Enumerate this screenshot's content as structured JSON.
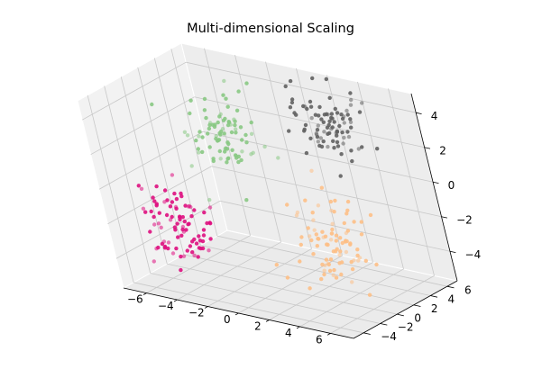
{
  "chart_data": {
    "type": "scatter3d",
    "title": "Multi-dimensional Scaling",
    "xlabel": "",
    "ylabel": "",
    "zlabel": "",
    "xlim": [
      -7.5,
      7.5
    ],
    "ylim": [
      -5.2,
      7.2
    ],
    "zlim": [
      -5.7,
      5.1
    ],
    "x_ticks": [
      "−6",
      "−4",
      "−2",
      "0",
      "2",
      "4",
      "6"
    ],
    "y_ticks": [
      "−4",
      "−2",
      "0",
      "2",
      "4",
      "6"
    ],
    "z_ticks": [
      "−4",
      "−2",
      "0",
      "2",
      "4"
    ],
    "x_tick_values": [
      -6,
      -4,
      -2,
      0,
      2,
      4,
      6
    ],
    "y_tick_values": [
      -4,
      -2,
      0,
      2,
      4,
      6
    ],
    "z_tick_values": [
      -4,
      -2,
      0,
      2,
      4
    ],
    "legend": "none",
    "grid": true,
    "series": [
      {
        "color": "#de0f7f",
        "center": [
          -5.5,
          -1.0,
          -2.8
        ],
        "count": 90,
        "spread": [
          1.0,
          1.1,
          1.1
        ]
      },
      {
        "color": "#88c883",
        "center": [
          -4.3,
          4.5,
          1.1
        ],
        "count": 90,
        "spread": [
          1.0,
          1.1,
          1.1
        ]
      },
      {
        "color": "#606060",
        "center": [
          2.0,
          6.0,
          2.5
        ],
        "count": 90,
        "spread": [
          1.0,
          1.1,
          1.1
        ]
      },
      {
        "color": "#fdbf86",
        "center": [
          3.0,
          2.0,
          -2.8
        ],
        "count": 90,
        "spread": [
          1.0,
          1.2,
          1.2
        ]
      }
    ]
  }
}
